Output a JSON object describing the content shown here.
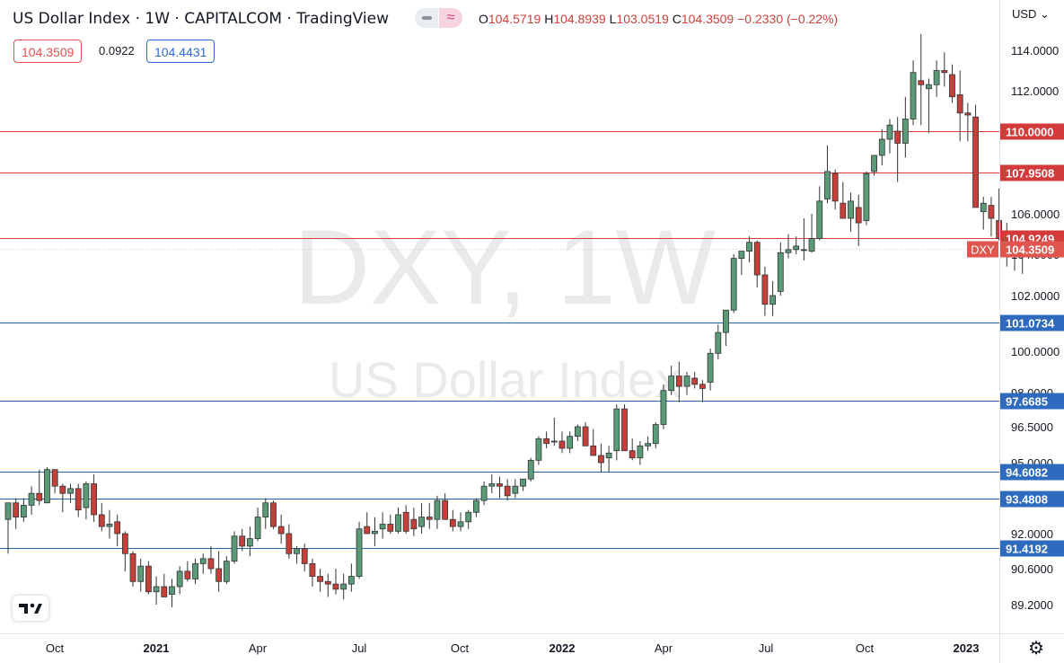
{
  "header": {
    "title": "US Dollar Index · 1W · CAPITALCOM · TradingView",
    "ohlc_open_label": "O",
    "ohlc_open": "104.5719",
    "ohlc_high_label": "H",
    "ohlc_high": "104.8939",
    "ohlc_low_label": "L",
    "ohlc_low": "103.0519",
    "ohlc_close_label": "C",
    "ohlc_close": "104.3509",
    "change": "−0.2330 (−0.22%)"
  },
  "quote": {
    "bid": "104.3509",
    "spread": "0.0922",
    "ask": "104.4431"
  },
  "currency_selector": "USD ⌄",
  "watermark": {
    "symbol": "DXY, 1W",
    "name": "US Dollar Index"
  },
  "symbol_tag": "DXY",
  "colors": {
    "up": "#5b9a79",
    "down": "#c5403b",
    "resistance": "#d93a3a",
    "support": "#2266a8",
    "price_tag": "#e0564f",
    "support_tag": "#2e6bbf",
    "resistance_tag": "#d33a3a"
  },
  "icons": {
    "tradingview_logo": "tradingview-logo-icon",
    "settings": "gear-icon",
    "compare": "compare-icon",
    "wave": "wave-icon"
  },
  "chart_data": {
    "type": "candlestick",
    "interval": "1W",
    "ylim": [
      88.45,
      115.48
    ],
    "y_ticks": [
      "114.0000",
      "112.0000",
      "106.0000",
      "104.0000",
      "102.0000",
      "100.0000",
      "98.0000",
      "96.5000",
      "95.0000",
      "92.0000",
      "90.6000",
      "89.2000"
    ],
    "x_ticks": [
      "Oct",
      "2021",
      "Apr",
      "Jul",
      "Oct",
      "2022",
      "Apr",
      "Jul",
      "Oct",
      "2023"
    ],
    "horizontal_levels": [
      {
        "value": 110.0,
        "label": "110.0000",
        "kind": "resistance"
      },
      {
        "value": 107.9508,
        "label": "107.9508",
        "kind": "resistance"
      },
      {
        "value": 104.9249,
        "label": "104.9249",
        "kind": "resistance"
      },
      {
        "value": 101.0734,
        "label": "101.0734",
        "kind": "support"
      },
      {
        "value": 97.6685,
        "label": "97.6685",
        "kind": "support"
      },
      {
        "value": 94.6082,
        "label": "94.6082",
        "kind": "support"
      },
      {
        "value": 93.4808,
        "label": "93.4808",
        "kind": "support"
      },
      {
        "value": 91.4192,
        "label": "91.4192",
        "kind": "support"
      }
    ],
    "last_price": {
      "value": 104.3509,
      "label": "104.3509"
    },
    "candles_ohlc": [
      [
        92.6,
        93.3,
        91.2,
        93.3
      ],
      [
        93.3,
        93.5,
        92.2,
        92.7
      ],
      [
        92.7,
        93.5,
        92.5,
        93.2
      ],
      [
        93.2,
        94.0,
        92.8,
        93.7
      ],
      [
        93.7,
        94.7,
        93.2,
        93.4
      ],
      [
        93.3,
        94.8,
        93.3,
        94.7
      ],
      [
        94.7,
        94.7,
        93.7,
        94.0
      ],
      [
        94.0,
        94.1,
        92.9,
        93.7
      ],
      [
        93.7,
        94.1,
        93.3,
        93.9
      ],
      [
        93.9,
        94.1,
        92.7,
        93.0
      ],
      [
        93.1,
        94.2,
        92.6,
        94.1
      ],
      [
        94.1,
        94.5,
        92.5,
        92.8
      ],
      [
        92.8,
        93.3,
        92.1,
        92.3
      ],
      [
        92.3,
        93.0,
        91.8,
        92.4
      ],
      [
        92.5,
        92.8,
        91.5,
        92.0
      ],
      [
        92.0,
        92.1,
        90.5,
        91.2
      ],
      [
        91.2,
        91.3,
        89.9,
        90.1
      ],
      [
        90.1,
        91.0,
        89.7,
        90.7
      ],
      [
        90.7,
        90.9,
        89.6,
        89.7
      ],
      [
        89.7,
        90.3,
        89.2,
        89.9
      ],
      [
        89.9,
        90.4,
        89.5,
        89.5
      ],
      [
        89.6,
        90.2,
        89.1,
        89.9
      ],
      [
        89.9,
        90.7,
        89.6,
        90.5
      ],
      [
        90.5,
        90.9,
        90.1,
        90.2
      ],
      [
        90.2,
        91.0,
        90.0,
        90.8
      ],
      [
        90.8,
        91.2,
        90.4,
        91.0
      ],
      [
        91.0,
        91.5,
        90.4,
        90.6
      ],
      [
        90.6,
        91.3,
        89.7,
        90.1
      ],
      [
        90.1,
        91.1,
        90.0,
        90.9
      ],
      [
        90.9,
        92.1,
        90.8,
        91.9
      ],
      [
        91.9,
        92.2,
        91.3,
        91.5
      ],
      [
        91.5,
        92.3,
        91.1,
        91.8
      ],
      [
        91.8,
        93.1,
        91.7,
        92.7
      ],
      [
        92.7,
        93.5,
        92.2,
        93.3
      ],
      [
        93.3,
        93.4,
        92.2,
        92.3
      ],
      [
        92.3,
        92.8,
        91.6,
        92.0
      ],
      [
        92.0,
        92.4,
        91.0,
        91.2
      ],
      [
        91.2,
        91.5,
        90.8,
        91.4
      ],
      [
        91.4,
        91.6,
        90.5,
        90.8
      ],
      [
        90.8,
        91.0,
        89.9,
        90.3
      ],
      [
        90.3,
        90.6,
        89.7,
        90.1
      ],
      [
        90.1,
        90.4,
        89.5,
        90.0
      ],
      [
        90.0,
        90.6,
        89.6,
        89.8
      ],
      [
        89.8,
        90.4,
        89.4,
        90.0
      ],
      [
        90.0,
        90.8,
        89.7,
        90.3
      ],
      [
        90.3,
        92.5,
        90.2,
        92.2
      ],
      [
        92.3,
        92.9,
        92.0,
        92.0
      ],
      [
        92.0,
        92.7,
        91.5,
        92.1
      ],
      [
        92.2,
        92.9,
        91.8,
        92.4
      ],
      [
        92.4,
        92.8,
        92.0,
        92.1
      ],
      [
        92.1,
        93.1,
        92.0,
        92.8
      ],
      [
        92.9,
        93.2,
        92.0,
        92.1
      ],
      [
        92.6,
        93.1,
        91.9,
        92.2
      ],
      [
        92.3,
        93.3,
        92.0,
        92.7
      ],
      [
        92.7,
        93.3,
        92.2,
        92.6
      ],
      [
        92.6,
        93.6,
        92.2,
        93.4
      ],
      [
        93.4,
        93.7,
        92.6,
        92.6
      ],
      [
        92.6,
        93.0,
        92.1,
        92.3
      ],
      [
        92.3,
        92.9,
        92.1,
        92.5
      ],
      [
        92.5,
        93.0,
        92.2,
        92.9
      ],
      [
        92.9,
        93.5,
        92.7,
        93.4
      ],
      [
        93.4,
        94.2,
        93.2,
        94.0
      ],
      [
        94.0,
        94.5,
        93.7,
        94.1
      ],
      [
        94.1,
        94.4,
        93.5,
        94.0
      ],
      [
        94.0,
        94.3,
        93.4,
        93.6
      ],
      [
        93.7,
        94.3,
        93.5,
        94.0
      ],
      [
        94.0,
        94.3,
        93.8,
        94.3
      ],
      [
        94.3,
        95.2,
        94.2,
        95.1
      ],
      [
        95.1,
        96.1,
        94.9,
        96.0
      ],
      [
        96.0,
        96.3,
        95.6,
        95.8
      ],
      [
        95.9,
        96.9,
        95.7,
        95.9
      ],
      [
        95.9,
        96.3,
        95.4,
        95.6
      ],
      [
        95.6,
        96.3,
        95.4,
        96.1
      ],
      [
        96.1,
        96.6,
        95.9,
        96.5
      ],
      [
        96.5,
        96.7,
        95.7,
        95.7
      ],
      [
        95.7,
        96.4,
        95.4,
        95.3
      ],
      [
        95.3,
        95.8,
        94.6,
        95.0
      ],
      [
        95.2,
        95.7,
        94.6,
        95.4
      ],
      [
        95.5,
        97.5,
        95.1,
        97.3
      ],
      [
        97.3,
        97.5,
        95.5,
        95.5
      ],
      [
        95.5,
        96.0,
        95.1,
        95.2
      ],
      [
        95.2,
        95.9,
        94.9,
        95.7
      ],
      [
        95.7,
        96.1,
        95.5,
        95.8
      ],
      [
        95.8,
        96.7,
        95.6,
        96.6
      ],
      [
        96.6,
        98.4,
        96.4,
        98.1
      ],
      [
        98.1,
        99.3,
        97.9,
        98.8
      ],
      [
        98.8,
        99.5,
        97.6,
        98.3
      ],
      [
        98.3,
        99.0,
        97.9,
        98.8
      ],
      [
        98.7,
        99.0,
        98.2,
        98.4
      ],
      [
        98.4,
        98.6,
        97.6,
        98.2
      ],
      [
        98.5,
        100.1,
        98.1,
        99.9
      ],
      [
        99.9,
        101.0,
        99.6,
        100.7
      ],
      [
        100.7,
        101.5,
        100.2,
        101.5
      ],
      [
        101.5,
        104.0,
        101.4,
        103.8
      ],
      [
        103.8,
        104.0,
        103.0,
        104.2
      ],
      [
        104.2,
        105.0,
        103.6,
        104.7
      ],
      [
        104.7,
        104.8,
        102.4,
        103.0
      ],
      [
        103.0,
        103.4,
        101.3,
        101.7
      ],
      [
        101.7,
        102.7,
        101.3,
        102.0
      ],
      [
        102.2,
        104.7,
        102.0,
        104.1
      ],
      [
        104.1,
        105.1,
        103.8,
        104.3
      ],
      [
        104.3,
        105.0,
        104.0,
        104.5
      ],
      [
        104.3,
        105.8,
        103.7,
        104.3
      ],
      [
        104.2,
        106.0,
        104.1,
        104.9
      ],
      [
        104.9,
        107.3,
        104.8,
        106.6
      ],
      [
        106.7,
        109.3,
        106.5,
        108.0
      ],
      [
        107.9,
        108.1,
        106.2,
        106.6
      ],
      [
        106.5,
        107.5,
        105.9,
        105.8
      ],
      [
        105.8,
        107.0,
        105.2,
        106.6
      ],
      [
        106.3,
        106.9,
        104.5,
        105.6
      ],
      [
        105.7,
        108.0,
        105.5,
        107.9
      ],
      [
        108.0,
        108.8,
        107.8,
        108.8
      ],
      [
        108.8,
        110.1,
        108.3,
        109.6
      ],
      [
        109.6,
        110.6,
        108.9,
        110.3
      ],
      [
        110.0,
        110.7,
        107.5,
        109.4
      ],
      [
        109.4,
        111.7,
        108.7,
        110.6
      ],
      [
        110.6,
        113.5,
        110.3,
        112.9
      ],
      [
        112.5,
        114.8,
        110.3,
        112.3
      ],
      [
        112.1,
        112.6,
        109.9,
        112.3
      ],
      [
        112.3,
        113.5,
        111.7,
        113.0
      ],
      [
        113.0,
        113.9,
        112.2,
        112.9
      ],
      [
        112.8,
        113.3,
        111.4,
        111.7
      ],
      [
        111.8,
        113.0,
        109.5,
        110.9
      ],
      [
        110.9,
        111.4,
        109.5,
        110.8
      ],
      [
        110.7,
        111.3,
        106.7,
        106.3
      ],
      [
        106.1,
        106.8,
        105.3,
        106.5
      ],
      [
        106.4,
        106.8,
        105.0,
        105.8
      ],
      [
        105.7,
        107.2,
        104.8,
        104.9
      ],
      [
        104.8,
        105.6,
        103.4,
        104.1
      ],
      [
        104.1,
        105.0,
        103.2,
        104.5
      ],
      [
        104.57,
        104.89,
        103.05,
        104.35
      ]
    ]
  }
}
